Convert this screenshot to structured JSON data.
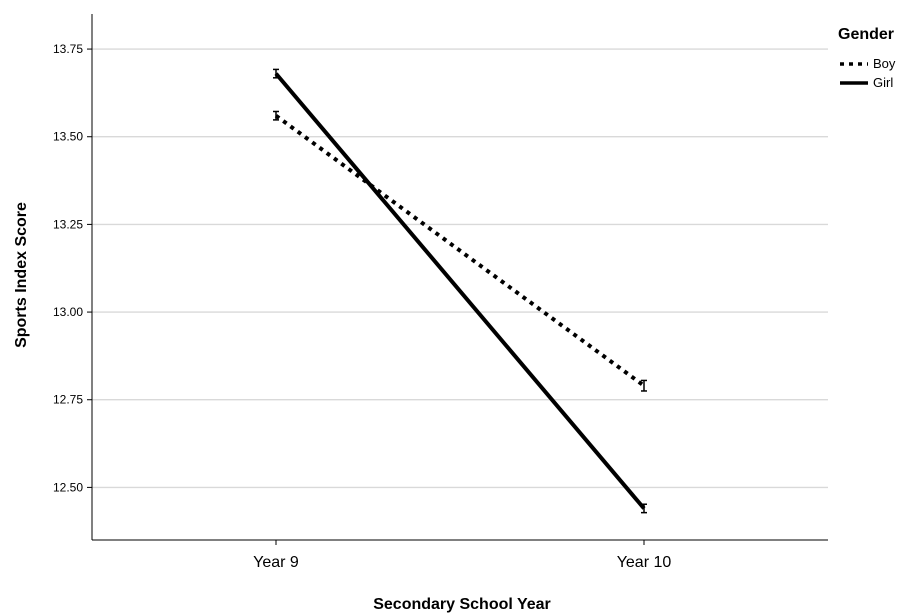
{
  "chart_data": {
    "type": "line",
    "x_axis_title": "Secondary School Year",
    "y_axis_title": "Sports Index Score",
    "categories": [
      "Year 9",
      "Year 10"
    ],
    "y_ticks": [
      "12.50",
      "12.75",
      "13.00",
      "13.25",
      "13.50",
      "13.75"
    ],
    "ylim": [
      12.35,
      13.85
    ],
    "grid": true,
    "legend": {
      "title": "Gender",
      "placement": "right"
    },
    "series": [
      {
        "name": "Boy",
        "style": "dotted",
        "color": "#000000",
        "values": [
          13.56,
          12.79
        ],
        "error": [
          0.012,
          0.015
        ]
      },
      {
        "name": "Girl",
        "style": "solid",
        "color": "#000000",
        "values": [
          13.68,
          12.44
        ],
        "error": [
          0.012,
          0.012
        ]
      }
    ]
  }
}
